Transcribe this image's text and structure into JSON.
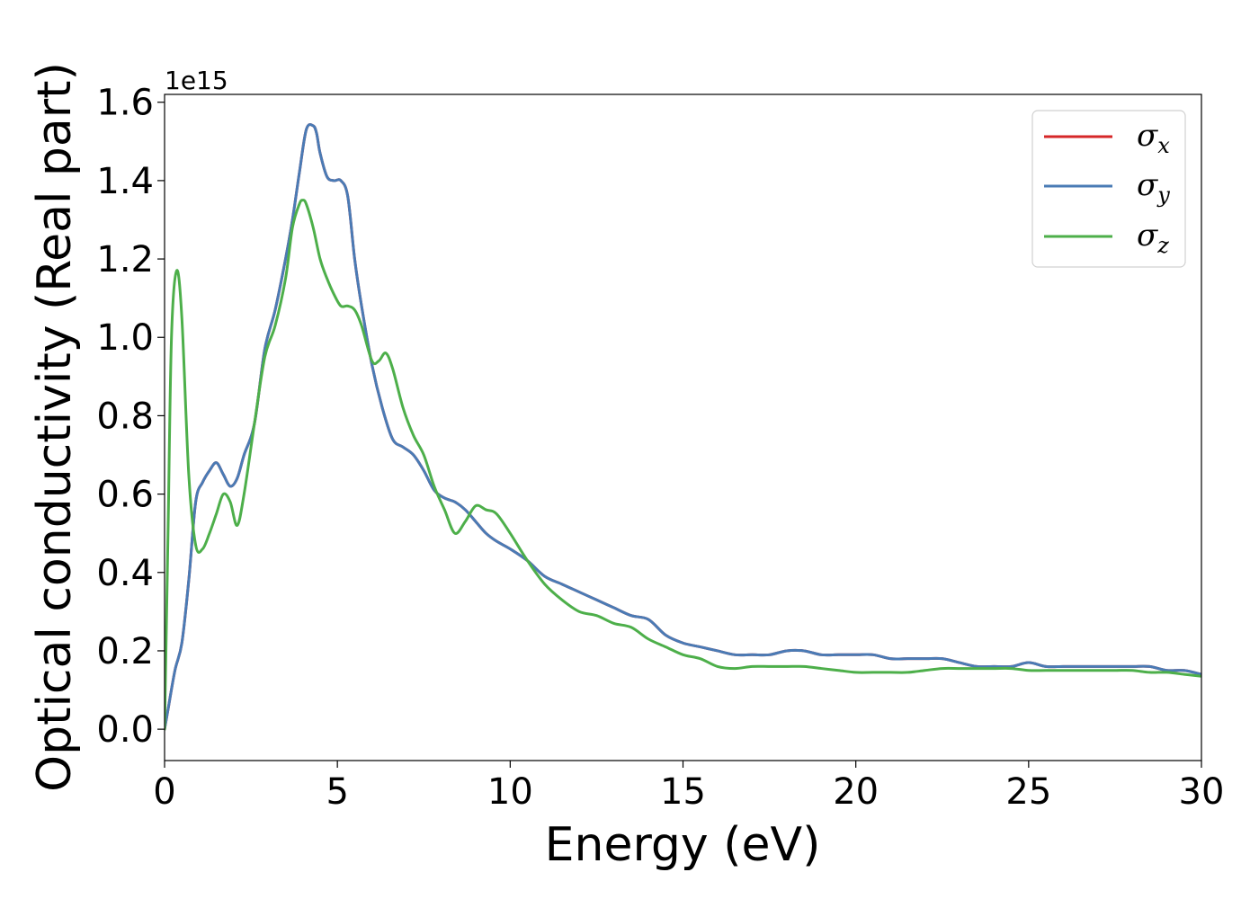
{
  "chart_data": {
    "type": "line",
    "title": "",
    "xlabel": "Energy (eV)",
    "ylabel": "Optical conductivity (Real part)",
    "y_offset_label": "1e15",
    "xlim": [
      0,
      30
    ],
    "ylim": [
      -0.08,
      1.62
    ],
    "xticks": [
      0,
      5,
      10,
      15,
      20,
      25,
      30
    ],
    "yticks": [
      0.0,
      0.2,
      0.4,
      0.6,
      0.8,
      1.0,
      1.2,
      1.4,
      1.6
    ],
    "xtick_labels": [
      "0",
      "5",
      "10",
      "15",
      "20",
      "25",
      "30"
    ],
    "ytick_labels": [
      "0.0",
      "0.2",
      "0.4",
      "0.6",
      "0.8",
      "1.0",
      "1.2",
      "1.4",
      "1.6"
    ],
    "grid": false,
    "legend_position": "top-right",
    "legend": [
      {
        "symbol": "σ",
        "sub": "x",
        "color": "#d62728"
      },
      {
        "symbol": "σ",
        "sub": "y",
        "color": "#4a7bb5"
      },
      {
        "symbol": "σ",
        "sub": "z",
        "color": "#4daf4a"
      }
    ],
    "series": [
      {
        "key": "sigma_x",
        "color": "#d62728",
        "x": [
          0,
          0.1,
          0.3,
          0.5,
          0.7,
          0.9,
          1.1,
          1.3,
          1.5,
          1.7,
          1.9,
          2.1,
          2.3,
          2.6,
          2.9,
          3.2,
          3.5,
          3.7,
          3.9,
          4.1,
          4.3,
          4.4,
          4.5,
          4.7,
          4.9,
          5.1,
          5.3,
          5.5,
          5.7,
          6.0,
          6.3,
          6.6,
          6.9,
          7.2,
          7.5,
          7.8,
          8.1,
          8.4,
          8.7,
          9.0,
          9.3,
          9.6,
          10.0,
          10.5,
          11.0,
          11.5,
          12.0,
          12.5,
          13.0,
          13.5,
          14.0,
          14.5,
          15.0,
          15.5,
          16.0,
          16.5,
          17.0,
          17.5,
          18.0,
          18.5,
          19.0,
          19.5,
          20.0,
          20.5,
          21.0,
          21.5,
          22.0,
          22.5,
          23.0,
          23.5,
          24.0,
          24.5,
          25.0,
          25.5,
          26.0,
          26.5,
          27.0,
          27.5,
          28.0,
          28.5,
          29.0,
          29.5,
          30.0
        ],
        "y": [
          0.0,
          0.05,
          0.15,
          0.22,
          0.38,
          0.58,
          0.63,
          0.66,
          0.68,
          0.65,
          0.62,
          0.64,
          0.7,
          0.78,
          0.97,
          1.07,
          1.2,
          1.3,
          1.42,
          1.53,
          1.54,
          1.52,
          1.47,
          1.41,
          1.4,
          1.4,
          1.36,
          1.2,
          1.08,
          0.93,
          0.82,
          0.74,
          0.72,
          0.7,
          0.66,
          0.61,
          0.59,
          0.58,
          0.56,
          0.53,
          0.5,
          0.48,
          0.46,
          0.43,
          0.39,
          0.37,
          0.35,
          0.33,
          0.31,
          0.29,
          0.28,
          0.24,
          0.22,
          0.21,
          0.2,
          0.19,
          0.19,
          0.19,
          0.2,
          0.2,
          0.19,
          0.19,
          0.19,
          0.19,
          0.18,
          0.18,
          0.18,
          0.18,
          0.17,
          0.16,
          0.16,
          0.16,
          0.17,
          0.16,
          0.16,
          0.16,
          0.16,
          0.16,
          0.16,
          0.16,
          0.15,
          0.15,
          0.14
        ]
      },
      {
        "key": "sigma_y",
        "color": "#4a7bb5",
        "x": [
          0,
          0.1,
          0.3,
          0.5,
          0.7,
          0.9,
          1.1,
          1.3,
          1.5,
          1.7,
          1.9,
          2.1,
          2.3,
          2.6,
          2.9,
          3.2,
          3.5,
          3.7,
          3.9,
          4.1,
          4.3,
          4.4,
          4.5,
          4.7,
          4.9,
          5.1,
          5.3,
          5.5,
          5.7,
          6.0,
          6.3,
          6.6,
          6.9,
          7.2,
          7.5,
          7.8,
          8.1,
          8.4,
          8.7,
          9.0,
          9.3,
          9.6,
          10.0,
          10.5,
          11.0,
          11.5,
          12.0,
          12.5,
          13.0,
          13.5,
          14.0,
          14.5,
          15.0,
          15.5,
          16.0,
          16.5,
          17.0,
          17.5,
          18.0,
          18.5,
          19.0,
          19.5,
          20.0,
          20.5,
          21.0,
          21.5,
          22.0,
          22.5,
          23.0,
          23.5,
          24.0,
          24.5,
          25.0,
          25.5,
          26.0,
          26.5,
          27.0,
          27.5,
          28.0,
          28.5,
          29.0,
          29.5,
          30.0
        ],
        "y": [
          0.0,
          0.05,
          0.15,
          0.22,
          0.38,
          0.58,
          0.63,
          0.66,
          0.68,
          0.65,
          0.62,
          0.64,
          0.7,
          0.78,
          0.97,
          1.07,
          1.2,
          1.3,
          1.42,
          1.53,
          1.54,
          1.52,
          1.47,
          1.41,
          1.4,
          1.4,
          1.36,
          1.2,
          1.08,
          0.93,
          0.82,
          0.74,
          0.72,
          0.7,
          0.66,
          0.61,
          0.59,
          0.58,
          0.56,
          0.53,
          0.5,
          0.48,
          0.46,
          0.43,
          0.39,
          0.37,
          0.35,
          0.33,
          0.31,
          0.29,
          0.28,
          0.24,
          0.22,
          0.21,
          0.2,
          0.19,
          0.19,
          0.19,
          0.2,
          0.2,
          0.19,
          0.19,
          0.19,
          0.19,
          0.18,
          0.18,
          0.18,
          0.18,
          0.17,
          0.16,
          0.16,
          0.16,
          0.17,
          0.16,
          0.16,
          0.16,
          0.16,
          0.16,
          0.16,
          0.16,
          0.15,
          0.15,
          0.14
        ]
      },
      {
        "key": "sigma_z",
        "color": "#4daf4a",
        "x": [
          0,
          0.1,
          0.2,
          0.35,
          0.5,
          0.7,
          0.9,
          1.1,
          1.3,
          1.5,
          1.7,
          1.9,
          2.1,
          2.3,
          2.6,
          2.9,
          3.2,
          3.5,
          3.7,
          3.9,
          4.0,
          4.1,
          4.3,
          4.5,
          4.7,
          4.9,
          5.1,
          5.3,
          5.5,
          5.7,
          6.0,
          6.2,
          6.4,
          6.6,
          6.9,
          7.2,
          7.5,
          7.8,
          8.1,
          8.4,
          8.7,
          9.0,
          9.3,
          9.6,
          10.0,
          10.5,
          11.0,
          11.5,
          12.0,
          12.5,
          13.0,
          13.5,
          14.0,
          14.5,
          15.0,
          15.5,
          16.0,
          16.5,
          17.0,
          17.5,
          18.0,
          18.5,
          19.0,
          19.5,
          20.0,
          20.5,
          21.0,
          21.5,
          22.0,
          22.5,
          23.0,
          23.5,
          24.0,
          24.5,
          25.0,
          25.5,
          26.0,
          26.5,
          27.0,
          27.5,
          28.0,
          28.5,
          29.0,
          29.5,
          30.0
        ],
        "y": [
          0.0,
          0.5,
          1.0,
          1.17,
          1.05,
          0.65,
          0.47,
          0.46,
          0.5,
          0.55,
          0.6,
          0.58,
          0.52,
          0.6,
          0.78,
          0.95,
          1.03,
          1.15,
          1.28,
          1.34,
          1.35,
          1.34,
          1.28,
          1.2,
          1.15,
          1.11,
          1.08,
          1.08,
          1.07,
          1.03,
          0.94,
          0.94,
          0.96,
          0.92,
          0.82,
          0.75,
          0.7,
          0.62,
          0.56,
          0.5,
          0.53,
          0.57,
          0.56,
          0.55,
          0.5,
          0.43,
          0.37,
          0.33,
          0.3,
          0.29,
          0.27,
          0.26,
          0.23,
          0.21,
          0.19,
          0.18,
          0.16,
          0.155,
          0.16,
          0.16,
          0.16,
          0.16,
          0.155,
          0.15,
          0.145,
          0.145,
          0.145,
          0.145,
          0.15,
          0.155,
          0.155,
          0.155,
          0.155,
          0.155,
          0.15,
          0.15,
          0.15,
          0.15,
          0.15,
          0.15,
          0.15,
          0.145,
          0.145,
          0.14,
          0.135
        ]
      }
    ]
  }
}
